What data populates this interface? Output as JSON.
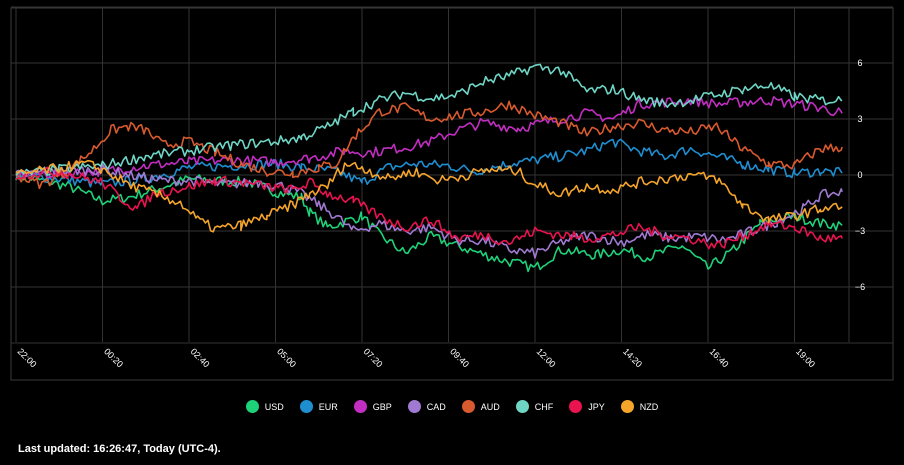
{
  "chart_data": {
    "type": "line",
    "x_ticks": [
      "22:00",
      "00:20",
      "02:40",
      "05:00",
      "07:20",
      "09:40",
      "12:00",
      "14:20",
      "16:40",
      "19:00"
    ],
    "y_ticks": [
      6,
      3,
      0,
      -3,
      -6
    ],
    "ylim": [
      -9,
      9
    ],
    "grid": true,
    "legend_position": "bottom",
    "series": [
      {
        "name": "USD",
        "color": "#1ed27a",
        "anchors": [
          [
            0,
            0
          ],
          [
            0.3,
            -0.3
          ],
          [
            0.6,
            -0.6
          ],
          [
            1.0,
            -1.4
          ],
          [
            1.3,
            -1.2
          ],
          [
            2.0,
            -0.2
          ],
          [
            2.3,
            -0.3
          ],
          [
            2.7,
            -0.4
          ],
          [
            3.0,
            -0.9
          ],
          [
            3.3,
            -1.2
          ],
          [
            3.4,
            -2.0
          ],
          [
            3.6,
            -2.8
          ],
          [
            4.0,
            -2.2
          ],
          [
            4.2,
            -3.2
          ],
          [
            4.5,
            -4.2
          ],
          [
            4.8,
            -3.3
          ],
          [
            5.1,
            -3.8
          ],
          [
            5.5,
            -4.4
          ],
          [
            6.0,
            -5.0
          ],
          [
            6.3,
            -4.0
          ],
          [
            6.7,
            -4.3
          ],
          [
            7.0,
            -4.0
          ],
          [
            7.3,
            -4.4
          ],
          [
            7.7,
            -3.8
          ],
          [
            8.0,
            -5.0
          ],
          [
            8.3,
            -4.0
          ],
          [
            8.6,
            -2.6
          ],
          [
            9.0,
            -2.2
          ],
          [
            9.3,
            -2.6
          ],
          [
            9.55,
            -2.7
          ]
        ]
      },
      {
        "name": "EUR",
        "color": "#1e8ed0",
        "anchors": [
          [
            0,
            0
          ],
          [
            0.5,
            -0.2
          ],
          [
            1.0,
            -0.5
          ],
          [
            1.5,
            -0.2
          ],
          [
            2.0,
            0.4
          ],
          [
            2.5,
            0.5
          ],
          [
            3.0,
            0.6
          ],
          [
            3.3,
            0.4
          ],
          [
            3.7,
            0.2
          ],
          [
            4.0,
            -0.4
          ],
          [
            4.3,
            0.4
          ],
          [
            4.6,
            0.6
          ],
          [
            5.0,
            0.5
          ],
          [
            5.3,
            0.2
          ],
          [
            5.7,
            0.6
          ],
          [
            6.0,
            0.8
          ],
          [
            6.3,
            1.0
          ],
          [
            6.6,
            1.3
          ],
          [
            6.9,
            1.8
          ],
          [
            7.2,
            1.3
          ],
          [
            7.5,
            1.0
          ],
          [
            7.8,
            1.4
          ],
          [
            8.1,
            1.0
          ],
          [
            8.4,
            0.6
          ],
          [
            8.7,
            0.3
          ],
          [
            9.0,
            0.1
          ],
          [
            9.3,
            0.2
          ],
          [
            9.55,
            0.1
          ]
        ]
      },
      {
        "name": "GBP",
        "color": "#c22ec2",
        "anchors": [
          [
            0,
            0
          ],
          [
            0.5,
            0.1
          ],
          [
            1.0,
            0.2
          ],
          [
            1.5,
            0.5
          ],
          [
            2.0,
            0.7
          ],
          [
            2.5,
            0.8
          ],
          [
            3.0,
            0.7
          ],
          [
            3.4,
            0.9
          ],
          [
            3.8,
            1.3
          ],
          [
            4.1,
            1.2
          ],
          [
            4.5,
            1.5
          ],
          [
            4.8,
            1.8
          ],
          [
            5.1,
            2.4
          ],
          [
            5.4,
            2.8
          ],
          [
            5.8,
            2.5
          ],
          [
            6.0,
            2.7
          ],
          [
            6.3,
            3.0
          ],
          [
            6.6,
            3.3
          ],
          [
            6.9,
            3.0
          ],
          [
            7.2,
            3.8
          ],
          [
            7.5,
            3.9
          ],
          [
            7.8,
            4.0
          ],
          [
            8.1,
            3.8
          ],
          [
            8.4,
            3.9
          ],
          [
            8.7,
            4.0
          ],
          [
            9.0,
            3.8
          ],
          [
            9.3,
            3.6
          ],
          [
            9.55,
            3.3
          ]
        ]
      },
      {
        "name": "CAD",
        "color": "#a07ad2",
        "anchors": [
          [
            0,
            0
          ],
          [
            0.5,
            0.2
          ],
          [
            1.0,
            0.3
          ],
          [
            1.3,
            0.0
          ],
          [
            1.7,
            -0.3
          ],
          [
            2.0,
            -0.3
          ],
          [
            2.4,
            -0.5
          ],
          [
            2.8,
            -0.4
          ],
          [
            3.1,
            -0.6
          ],
          [
            3.3,
            -1.0
          ],
          [
            3.5,
            -1.6
          ],
          [
            3.7,
            -2.2
          ],
          [
            3.9,
            -3.0
          ],
          [
            4.2,
            -2.6
          ],
          [
            4.5,
            -3.0
          ],
          [
            4.8,
            -2.8
          ],
          [
            5.1,
            -3.5
          ],
          [
            5.4,
            -3.5
          ],
          [
            5.7,
            -4.0
          ],
          [
            6.0,
            -4.2
          ],
          [
            6.3,
            -3.6
          ],
          [
            6.6,
            -3.2
          ],
          [
            7.0,
            -3.6
          ],
          [
            7.3,
            -3.2
          ],
          [
            7.6,
            -3.4
          ],
          [
            7.9,
            -3.3
          ],
          [
            8.2,
            -3.5
          ],
          [
            8.5,
            -3.0
          ],
          [
            8.8,
            -2.5
          ],
          [
            9.1,
            -1.8
          ],
          [
            9.3,
            -1.1
          ],
          [
            9.55,
            -0.9
          ]
        ]
      },
      {
        "name": "AUD",
        "color": "#d95a2e",
        "anchors": [
          [
            0,
            0
          ],
          [
            0.3,
            -0.5
          ],
          [
            0.6,
            0.2
          ],
          [
            0.9,
            1.4
          ],
          [
            1.1,
            2.4
          ],
          [
            1.3,
            2.6
          ],
          [
            1.5,
            2.4
          ],
          [
            1.7,
            1.6
          ],
          [
            2.0,
            1.8
          ],
          [
            2.3,
            1.2
          ],
          [
            2.6,
            0.6
          ],
          [
            2.9,
            0.2
          ],
          [
            3.2,
            0.1
          ],
          [
            3.5,
            0.4
          ],
          [
            3.7,
            0.6
          ],
          [
            3.9,
            2.0
          ],
          [
            4.2,
            3.4
          ],
          [
            4.5,
            3.6
          ],
          [
            4.8,
            3.0
          ],
          [
            5.1,
            3.2
          ],
          [
            5.4,
            3.4
          ],
          [
            5.7,
            3.8
          ],
          [
            6.0,
            3.2
          ],
          [
            6.3,
            2.8
          ],
          [
            6.6,
            2.2
          ],
          [
            6.9,
            2.6
          ],
          [
            7.2,
            2.8
          ],
          [
            7.5,
            2.4
          ],
          [
            7.8,
            2.3
          ],
          [
            8.1,
            2.6
          ],
          [
            8.4,
            1.4
          ],
          [
            8.7,
            0.6
          ],
          [
            9.0,
            0.5
          ],
          [
            9.3,
            1.4
          ],
          [
            9.55,
            1.5
          ]
        ]
      },
      {
        "name": "CHF",
        "color": "#6fd6c6",
        "anchors": [
          [
            0,
            0
          ],
          [
            0.5,
            0.3
          ],
          [
            1.0,
            0.5
          ],
          [
            1.5,
            1.0
          ],
          [
            2.0,
            1.3
          ],
          [
            2.5,
            1.6
          ],
          [
            3.0,
            1.8
          ],
          [
            3.3,
            2.0
          ],
          [
            3.6,
            2.6
          ],
          [
            3.9,
            3.4
          ],
          [
            4.2,
            4.0
          ],
          [
            4.5,
            4.4
          ],
          [
            4.8,
            4.1
          ],
          [
            5.1,
            4.3
          ],
          [
            5.4,
            5.0
          ],
          [
            5.7,
            5.3
          ],
          [
            6.0,
            5.8
          ],
          [
            6.3,
            5.6
          ],
          [
            6.6,
            4.5
          ],
          [
            6.9,
            4.6
          ],
          [
            7.2,
            4.1
          ],
          [
            7.5,
            3.8
          ],
          [
            7.8,
            4.0
          ],
          [
            8.1,
            4.3
          ],
          [
            8.4,
            4.6
          ],
          [
            8.7,
            4.8
          ],
          [
            9.0,
            4.2
          ],
          [
            9.3,
            4.0
          ],
          [
            9.55,
            4.0
          ]
        ]
      },
      {
        "name": "JPY",
        "color": "#e8134f",
        "anchors": [
          [
            0,
            0
          ],
          [
            0.5,
            0.2
          ],
          [
            1.0,
            -0.4
          ],
          [
            1.2,
            -1.2
          ],
          [
            1.4,
            -1.8
          ],
          [
            1.6,
            -1.0
          ],
          [
            2.0,
            -0.6
          ],
          [
            2.3,
            -0.3
          ],
          [
            2.6,
            -0.4
          ],
          [
            3.0,
            -0.7
          ],
          [
            3.2,
            -0.8
          ],
          [
            3.4,
            -0.4
          ],
          [
            3.6,
            -1.0
          ],
          [
            3.9,
            -1.4
          ],
          [
            4.2,
            -2.2
          ],
          [
            4.5,
            -2.8
          ],
          [
            4.8,
            -2.4
          ],
          [
            5.1,
            -3.4
          ],
          [
            5.4,
            -3.2
          ],
          [
            5.7,
            -3.6
          ],
          [
            6.0,
            -3.0
          ],
          [
            6.3,
            -3.2
          ],
          [
            6.6,
            -3.4
          ],
          [
            6.9,
            -3.2
          ],
          [
            7.2,
            -2.8
          ],
          [
            7.5,
            -3.2
          ],
          [
            7.8,
            -3.4
          ],
          [
            8.1,
            -3.8
          ],
          [
            8.4,
            -3.3
          ],
          [
            8.7,
            -2.6
          ],
          [
            9.0,
            -2.8
          ],
          [
            9.3,
            -3.4
          ],
          [
            9.55,
            -3.4
          ]
        ]
      },
      {
        "name": "NZD",
        "color": "#f6a52b",
        "anchors": [
          [
            0,
            0
          ],
          [
            0.4,
            0.3
          ],
          [
            0.8,
            0.6
          ],
          [
            1.0,
            0.3
          ],
          [
            1.3,
            -0.5
          ],
          [
            1.6,
            -1.0
          ],
          [
            1.9,
            -1.5
          ],
          [
            2.1,
            -2.4
          ],
          [
            2.3,
            -2.9
          ],
          [
            2.6,
            -2.7
          ],
          [
            2.9,
            -2.2
          ],
          [
            3.2,
            -1.6
          ],
          [
            3.4,
            -1.0
          ],
          [
            3.6,
            -0.6
          ],
          [
            3.8,
            0.6
          ],
          [
            4.0,
            0.4
          ],
          [
            4.3,
            -0.2
          ],
          [
            4.6,
            0.2
          ],
          [
            4.9,
            -0.3
          ],
          [
            5.2,
            0.0
          ],
          [
            5.5,
            0.3
          ],
          [
            5.8,
            0.2
          ],
          [
            6.0,
            -0.5
          ],
          [
            6.3,
            -1.0
          ],
          [
            6.6,
            -0.6
          ],
          [
            6.9,
            -0.8
          ],
          [
            7.2,
            -0.4
          ],
          [
            7.5,
            -0.2
          ],
          [
            7.8,
            0.0
          ],
          [
            8.1,
            -0.2
          ],
          [
            8.4,
            -1.6
          ],
          [
            8.7,
            -2.4
          ],
          [
            9.0,
            -2.2
          ],
          [
            9.3,
            -1.8
          ],
          [
            9.55,
            -1.7
          ]
        ]
      }
    ]
  },
  "footer": {
    "last_updated_label": "Last updated: 16:26:47, Today (UTC-4)."
  }
}
